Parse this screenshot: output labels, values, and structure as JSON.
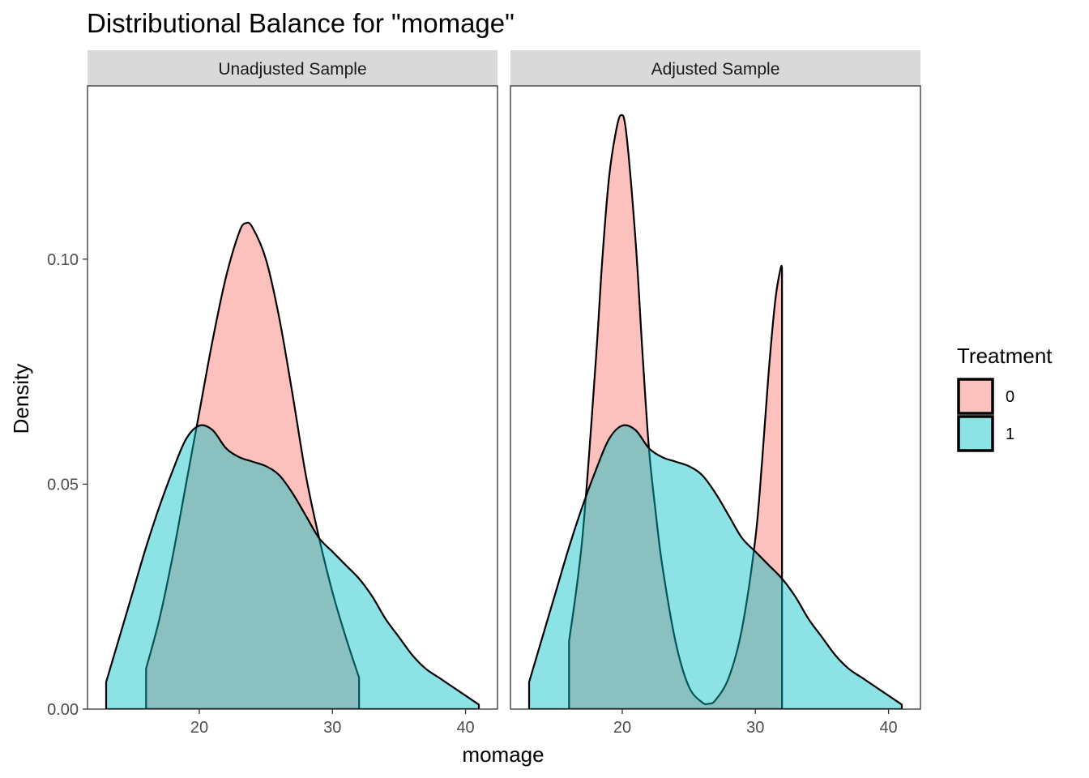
{
  "chart_data": {
    "type": "area",
    "title": "Distributional Balance for \"momage\"",
    "xlabel": "momage",
    "ylabel": "Density",
    "xlim": [
      11.6,
      42.4
    ],
    "ylim": [
      0,
      0.1385
    ],
    "x_ticks": [
      20,
      30,
      40
    ],
    "x_tick_labels": [
      "20",
      "30",
      "40"
    ],
    "y_ticks": [
      0,
      0.05,
      0.1
    ],
    "y_tick_labels": [
      "0.00",
      "0.05",
      "0.10"
    ],
    "grid": false,
    "legend": {
      "title": "Treatment",
      "position": "right",
      "entries": [
        {
          "label": "0",
          "color": "#F8766D"
        },
        {
          "label": "1",
          "color": "#00BFC4"
        }
      ]
    },
    "panels": [
      {
        "label": "Unadjusted Sample",
        "series": [
          {
            "name": "0",
            "color": "#F8766D",
            "x": [
              16,
              17,
              18,
              19,
              20,
              21,
              22,
              23,
              23.5,
              24,
              25,
              26,
              27,
              28,
              29,
              30,
              31,
              32
            ],
            "y": [
              0.009,
              0.02,
              0.034,
              0.05,
              0.066,
              0.082,
              0.096,
              0.106,
              0.108,
              0.107,
              0.1,
              0.087,
              0.07,
              0.052,
              0.038,
              0.026,
              0.016,
              0.007
            ]
          },
          {
            "name": "1",
            "color": "#00BFC4",
            "x": [
              13,
              14,
              15,
              16,
              17,
              18,
              19,
              20,
              21,
              22,
              23,
              24,
              25,
              26,
              27,
              28,
              29,
              30,
              31,
              32,
              33,
              34,
              35,
              36,
              37,
              38,
              39,
              40,
              41
            ],
            "y": [
              0.006,
              0.016,
              0.026,
              0.036,
              0.045,
              0.053,
              0.06,
              0.063,
              0.062,
              0.058,
              0.056,
              0.055,
              0.054,
              0.052,
              0.048,
              0.043,
              0.038,
              0.035,
              0.032,
              0.029,
              0.025,
              0.02,
              0.016,
              0.012,
              0.009,
              0.007,
              0.005,
              0.003,
              0.001
            ]
          }
        ]
      },
      {
        "label": "Adjusted Sample",
        "series": [
          {
            "name": "0",
            "color": "#F8766D",
            "x": [
              16,
              17,
              18,
              18.5,
              19,
              19.5,
              19.9,
              20.3,
              21,
              21.5,
              22,
              22.5,
              23,
              24,
              25,
              26,
              26.5,
              27,
              28,
              29,
              30,
              30.5,
              31,
              31.5,
              31.9,
              32
            ],
            "y": [
              0.015,
              0.038,
              0.077,
              0.1,
              0.118,
              0.128,
              0.132,
              0.128,
              0.104,
              0.08,
              0.058,
              0.044,
              0.032,
              0.015,
              0.005,
              0.0015,
              0.0012,
              0.002,
              0.007,
              0.018,
              0.038,
              0.055,
              0.075,
              0.091,
              0.098,
              0.098
            ]
          },
          {
            "name": "1",
            "color": "#00BFC4",
            "x": [
              13,
              14,
              15,
              16,
              17,
              18,
              19,
              20,
              21,
              22,
              23,
              24,
              25,
              26,
              27,
              28,
              29,
              30,
              31,
              32,
              33,
              34,
              35,
              36,
              37,
              38,
              39,
              40,
              41
            ],
            "y": [
              0.006,
              0.016,
              0.026,
              0.036,
              0.045,
              0.053,
              0.06,
              0.063,
              0.062,
              0.058,
              0.056,
              0.055,
              0.054,
              0.052,
              0.048,
              0.043,
              0.038,
              0.035,
              0.032,
              0.029,
              0.025,
              0.02,
              0.016,
              0.012,
              0.009,
              0.007,
              0.005,
              0.003,
              0.001
            ]
          }
        ]
      }
    ]
  }
}
